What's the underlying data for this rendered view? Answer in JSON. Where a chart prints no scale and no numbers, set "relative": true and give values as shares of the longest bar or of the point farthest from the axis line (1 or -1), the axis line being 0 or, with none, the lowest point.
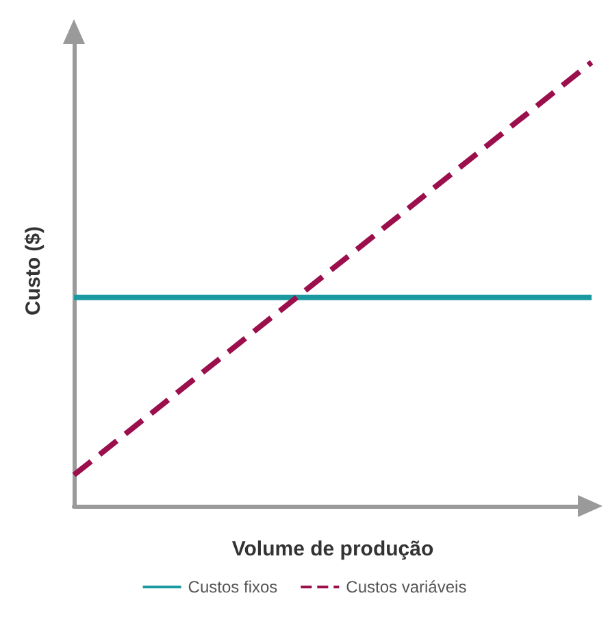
{
  "chart_data": {
    "type": "line",
    "relative": true,
    "xlabel": "Volume de produção",
    "ylabel": "Custo ($)",
    "categories": [
      null,
      null
    ],
    "series": [
      {
        "name": "Custos fixos",
        "color": "#1a9aa0",
        "line_style": "solid",
        "values": [
          0.47,
          0.47
        ]
      },
      {
        "name": "Custos variáveis",
        "color": "#9b0f4c",
        "line_style": "dashed",
        "values": [
          0.07,
          1
        ]
      }
    ],
    "legend": "bottom",
    "grid": false,
    "marker": "none"
  }
}
